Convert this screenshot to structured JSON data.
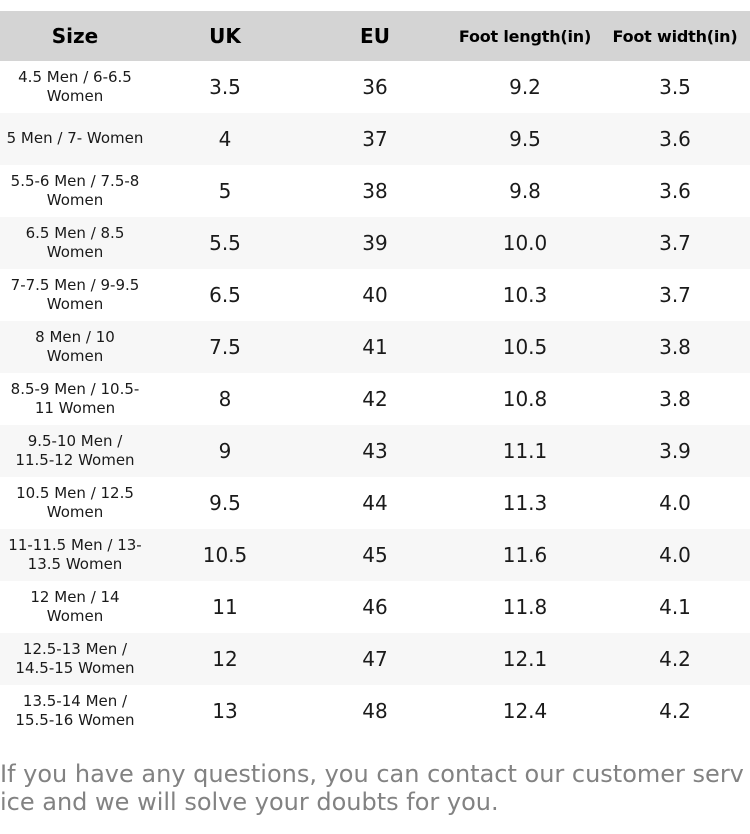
{
  "table": {
    "headers": {
      "size": "Size",
      "uk": "UK",
      "eu": "EU",
      "foot_length": "Foot length(in)",
      "foot_width": "Foot width(in)"
    },
    "rows": [
      {
        "size": "4.5 Men / 6-6.5\nWomen",
        "uk": "3.5",
        "eu": "36",
        "foot_length": "9.2",
        "foot_width": "3.5"
      },
      {
        "size": "5 Men / 7- Women",
        "uk": "4",
        "eu": "37",
        "foot_length": "9.5",
        "foot_width": "3.6"
      },
      {
        "size": "5.5-6 Men / 7.5-8\nWomen",
        "uk": "5",
        "eu": "38",
        "foot_length": "9.8",
        "foot_width": "3.6"
      },
      {
        "size": "6.5 Men / 8.5\nWomen",
        "uk": "5.5",
        "eu": "39",
        "foot_length": "10.0",
        "foot_width": "3.7"
      },
      {
        "size": "7-7.5 Men / 9-9.5\nWomen",
        "uk": "6.5",
        "eu": "40",
        "foot_length": "10.3",
        "foot_width": "3.7"
      },
      {
        "size": "8 Men / 10\nWomen",
        "uk": "7.5",
        "eu": "41",
        "foot_length": "10.5",
        "foot_width": "3.8"
      },
      {
        "size": "8.5-9 Men / 10.5-\n11 Women",
        "uk": "8",
        "eu": "42",
        "foot_length": "10.8",
        "foot_width": "3.8"
      },
      {
        "size": "9.5-10 Men /\n11.5-12 Women",
        "uk": "9",
        "eu": "43",
        "foot_length": "11.1",
        "foot_width": "3.9"
      },
      {
        "size": "10.5 Men / 12.5\nWomen",
        "uk": "9.5",
        "eu": "44",
        "foot_length": "11.3",
        "foot_width": "4.0"
      },
      {
        "size": "11-11.5 Men / 13-\n13.5 Women",
        "uk": "10.5",
        "eu": "45",
        "foot_length": "11.6",
        "foot_width": "4.0"
      },
      {
        "size": "12 Men / 14\nWomen",
        "uk": "11",
        "eu": "46",
        "foot_length": "11.8",
        "foot_width": "4.1"
      },
      {
        "size": "12.5-13 Men /\n14.5-15 Women",
        "uk": "12",
        "eu": "47",
        "foot_length": "12.1",
        "foot_width": "4.2"
      },
      {
        "size": "13.5-14 Men /\n15.5-16 Women",
        "uk": "13",
        "eu": "48",
        "foot_length": "12.4",
        "foot_width": "4.2"
      }
    ]
  },
  "footer": {
    "lines": [
      "If you have any questions, you can contact our customer serv",
      "ice and we will solve your doubts for you."
    ]
  },
  "colors": {
    "header_bg": "#d4d4d4",
    "row_alt_bg": "#f7f7f7",
    "body_text": "#1a1a1a",
    "footer_text": "#828282"
  }
}
